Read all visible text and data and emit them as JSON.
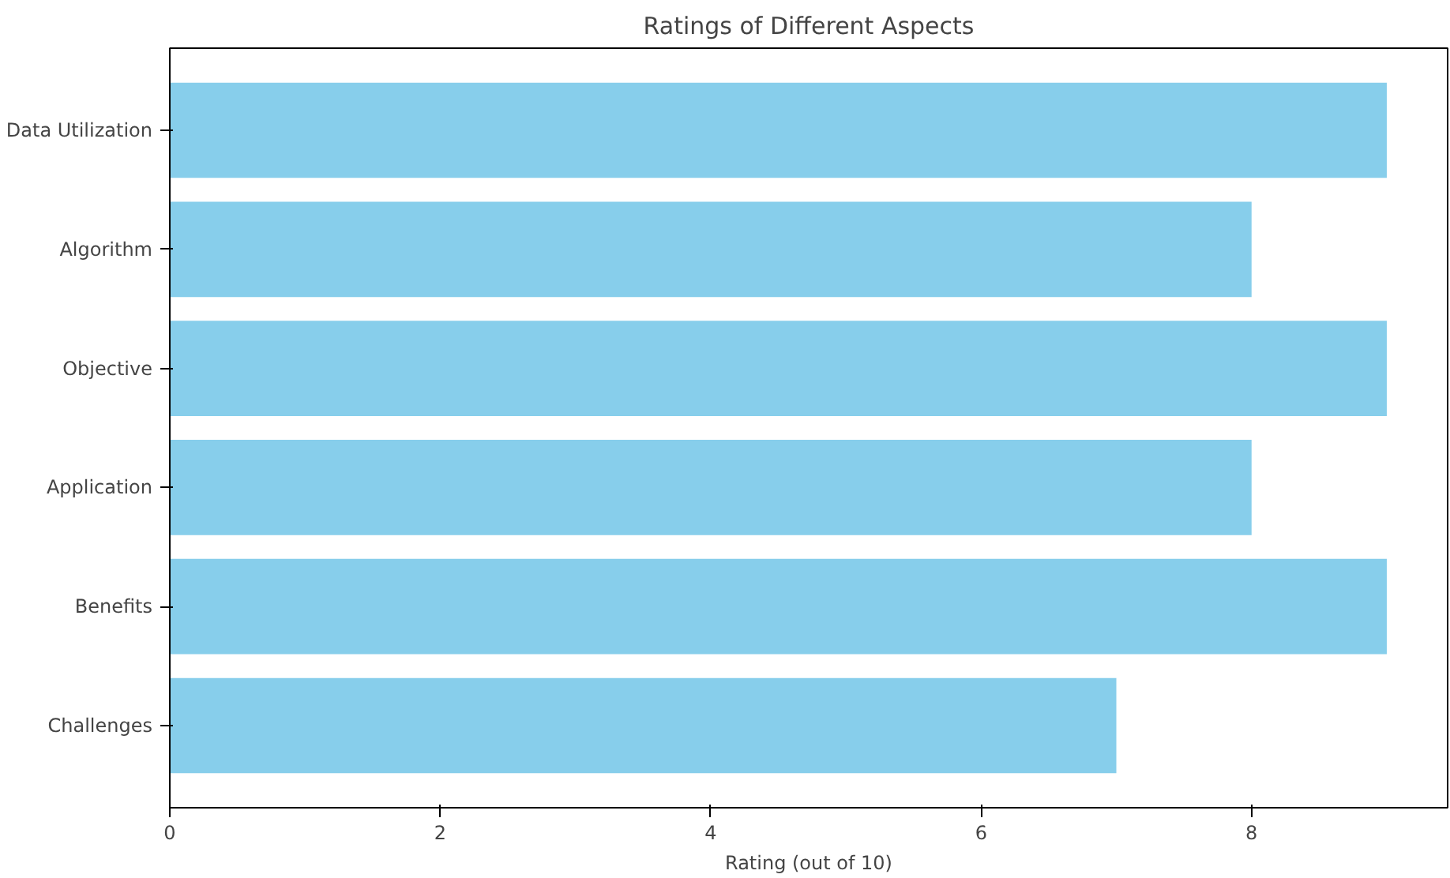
{
  "chart_data": {
    "type": "bar",
    "orientation": "horizontal",
    "title": "Ratings of Different Aspects",
    "xlabel": "Rating (out of 10)",
    "categories": [
      "Data Utilization",
      "Algorithm",
      "Objective",
      "Application",
      "Benefits",
      "Challenges"
    ],
    "values": [
      9,
      8,
      9,
      8,
      9,
      7
    ],
    "color": "#87ceeb",
    "xlim": [
      0,
      9.45
    ],
    "xticks": [
      0,
      2,
      4,
      6,
      8
    ],
    "grid": false
  }
}
